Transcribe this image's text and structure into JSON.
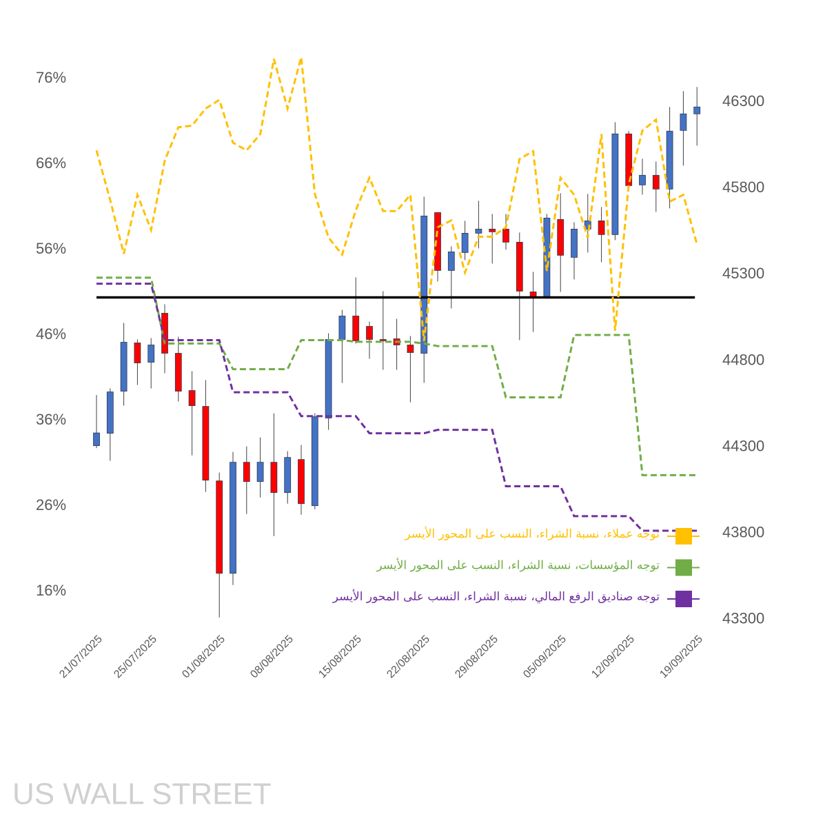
{
  "chart_data": {
    "type": "candlestick",
    "categories": [
      "21/07/2025",
      null,
      null,
      null,
      "25/07/2025",
      null,
      null,
      null,
      null,
      "01/08/2025",
      null,
      null,
      null,
      null,
      "08/08/2025",
      null,
      null,
      null,
      null,
      "15/08/2025",
      null,
      null,
      null,
      null,
      "22/08/2025",
      null,
      null,
      null,
      null,
      "29/08/2025",
      null,
      null,
      null,
      null,
      "05/09/2025",
      null,
      null,
      null,
      null,
      "12/09/2025",
      null,
      null,
      null,
      null,
      "19/09/2025"
    ],
    "open": [
      44308,
      44380,
      44624,
      44904,
      44792,
      45076,
      44844,
      44628,
      44536,
      44104,
      43568,
      44212,
      44100,
      44212,
      44036,
      44228,
      43960,
      44468,
      44924,
      45060,
      45000,
      44924,
      44928,
      44892,
      44844,
      45660,
      45324,
      45428,
      45540,
      45564,
      45564,
      45488,
      45200,
      45164,
      45620,
      45400,
      45564,
      45612,
      45532,
      46116,
      45820,
      45876,
      45796,
      46136,
      46232
    ],
    "high": [
      44602,
      44640,
      45020,
      44924,
      44932,
      45128,
      44940,
      44740,
      44688,
      44152,
      44272,
      44304,
      44356,
      44496,
      44276,
      44312,
      44496,
      44960,
      45096,
      45284,
      45028,
      45204,
      45044,
      44944,
      45752,
      45660,
      45464,
      45612,
      45728,
      45652,
      45652,
      45544,
      45316,
      45652,
      45772,
      45604,
      45768,
      45692,
      46184,
      46132,
      45972,
      45956,
      46272,
      46364,
      46388
    ],
    "low": [
      44294,
      44220,
      44540,
      44660,
      44640,
      44728,
      44564,
      44252,
      44040,
      43312,
      43500,
      43912,
      44008,
      43784,
      43972,
      43908,
      43940,
      44400,
      44672,
      44900,
      44812,
      44748,
      44748,
      44560,
      44672,
      45260,
      45104,
      45384,
      45452,
      45364,
      45444,
      44920,
      44968,
      45160,
      45200,
      45272,
      45428,
      45372,
      45500,
      45800,
      45764,
      45664,
      45684,
      45932,
      46048
    ],
    "close": [
      44382,
      44620,
      44908,
      44788,
      44892,
      44844,
      44624,
      44540,
      44108,
      43568,
      44212,
      44100,
      44212,
      44036,
      44240,
      43972,
      44476,
      44924,
      45060,
      44916,
      44924,
      44916,
      44892,
      44848,
      45640,
      45324,
      45432,
      45540,
      45564,
      45548,
      45488,
      45204,
      45172,
      45628,
      45412,
      45564,
      45612,
      45532,
      46116,
      45816,
      45876,
      45796,
      46132,
      46232,
      46272
    ],
    "up_color": "#4472c4",
    "down_color": "#ff0000",
    "series": [
      {
        "name": "توجه عملاء، نسبة الشراء، النسب على المحور الأيسر",
        "color": "#ffc000",
        "type": "line",
        "values": [
          67.6,
          61.8,
          55.5,
          62.4,
          58.3,
          66.4,
          70.3,
          70.5,
          72.5,
          73.5,
          68.5,
          67.6,
          69.5,
          78.3,
          72.5,
          78.5,
          62.5,
          57.4,
          55.4,
          60.6,
          64.4,
          60.5,
          60.5,
          62.4,
          45.3,
          58.6,
          59.4,
          53.3,
          57.5,
          57.5,
          58.6,
          66.6,
          67.5,
          53.5,
          64.4,
          62.4,
          57.4,
          69.5,
          46.5,
          63.6,
          69.9,
          71.2,
          61.6,
          62.4,
          56.6
        ]
      },
      {
        "name": "توجه المؤسسات، نسبة الشراء، النسب على المحور الأيسر",
        "color": "#70ad47",
        "type": "line",
        "values": [
          52.7,
          52.7,
          52.7,
          52.7,
          52.7,
          45.0,
          45.0,
          45.0,
          45.0,
          45.0,
          42.0,
          42.0,
          42.0,
          42.0,
          42.0,
          45.4,
          45.4,
          45.4,
          45.4,
          45.2,
          45.2,
          45.2,
          45.2,
          45.2,
          45.0,
          44.7,
          44.7,
          44.7,
          44.7,
          44.7,
          38.7,
          38.7,
          38.7,
          38.7,
          38.7,
          46.0,
          46.0,
          46.0,
          46.0,
          46.0,
          29.6,
          29.6,
          29.6,
          29.6,
          29.6
        ]
      },
      {
        "name": "توجه صناديق الرفع المالي، نسبة الشراء، النسب على المحور الأيسر",
        "color": "#7030a0",
        "type": "line",
        "values": [
          52.0,
          52.0,
          52.0,
          52.0,
          52.0,
          45.4,
          45.4,
          45.4,
          45.4,
          45.4,
          39.3,
          39.3,
          39.3,
          39.3,
          39.3,
          36.5,
          36.5,
          36.5,
          36.5,
          36.5,
          34.5,
          34.5,
          34.5,
          34.5,
          34.5,
          34.9,
          34.9,
          34.9,
          34.9,
          34.9,
          28.3,
          28.3,
          28.3,
          28.3,
          28.3,
          24.8,
          24.8,
          24.8,
          24.8,
          24.8,
          23.1,
          23.1,
          23.1,
          23.1,
          23.1
        ]
      }
    ],
    "reference_line": 50.4,
    "ylim": [
      12,
      80
    ],
    "yticks": [
      {
        "value": 16,
        "label": "16%"
      },
      {
        "value": 26,
        "label": "26%"
      },
      {
        "value": 36,
        "label": "36%"
      },
      {
        "value": 46,
        "label": "46%"
      },
      {
        "value": 56,
        "label": "56%"
      },
      {
        "value": 66,
        "label": "66%"
      },
      {
        "value": 76,
        "label": "76%"
      }
    ],
    "y2lim": [
      43265,
      46635
    ],
    "y2ticks": [
      43300,
      43800,
      44300,
      44800,
      45300,
      45800,
      46300
    ],
    "legend": "bottom-right",
    "watermark": "US WALL STREET"
  }
}
